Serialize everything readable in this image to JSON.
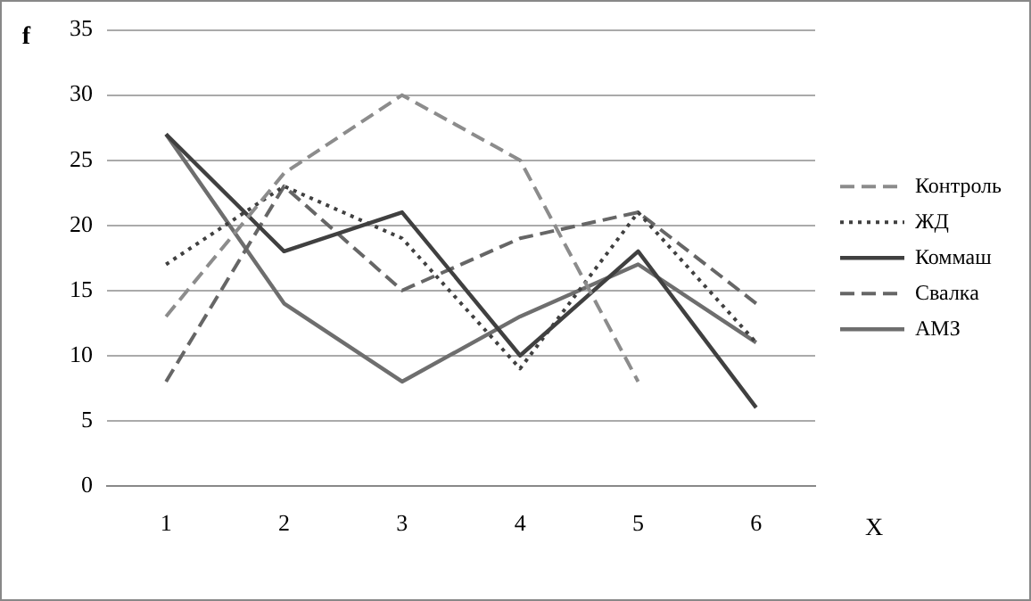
{
  "chart_data": {
    "type": "line",
    "xlabel": "X",
    "ylabel": "f",
    "categories": [
      "1",
      "2",
      "3",
      "4",
      "5",
      "6"
    ],
    "series": [
      {
        "name": "Контроль",
        "color": "#8c8c8c",
        "line_style": "dashed",
        "values": [
          13,
          24,
          30,
          25,
          8,
          null
        ]
      },
      {
        "name": "ЖД",
        "color": "#404040",
        "line_style": "dotted",
        "values": [
          17,
          23,
          19,
          9,
          21,
          11
        ]
      },
      {
        "name": "Коммаш",
        "color": "#404040",
        "line_style": "solid",
        "values": [
          27,
          18,
          21,
          10,
          18,
          6
        ]
      },
      {
        "name": "Свалка",
        "color": "#666666",
        "line_style": "dashed",
        "values": [
          8,
          23,
          15,
          19,
          21,
          14
        ]
      },
      {
        "name": "АМЗ",
        "color": "#6e6e6e",
        "line_style": "solid",
        "values": [
          27,
          14,
          8,
          13,
          17,
          11
        ]
      }
    ],
    "ylim": [
      0,
      35
    ],
    "yticks": [
      0,
      5,
      10,
      15,
      20,
      25,
      30,
      35
    ],
    "grid": "y",
    "legend": "right",
    "marker": "none"
  }
}
